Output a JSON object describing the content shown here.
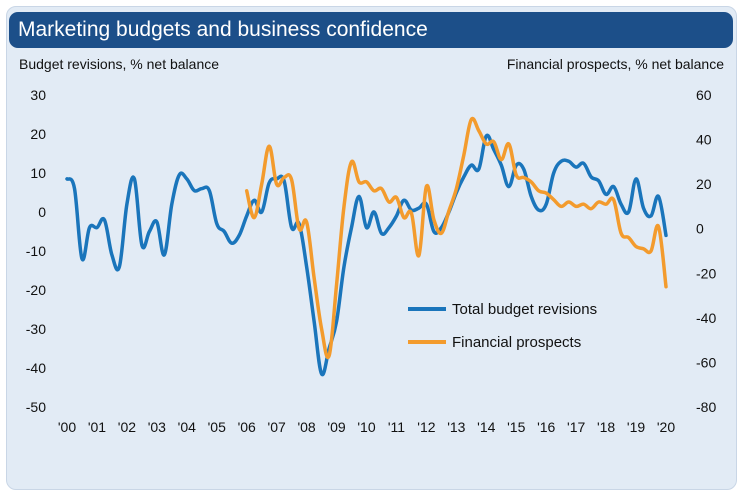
{
  "chart_data": {
    "type": "line",
    "title": "Marketing budgets and business confidence",
    "ylabel_left": "Budget revisions, % net balance",
    "ylabel_right": "Financial prospects, % net balance",
    "x_ticks": [
      "'00",
      "'01",
      "'02",
      "'03",
      "'04",
      "'05",
      "'06",
      "'07",
      "'08",
      "'09",
      "'10",
      "'11",
      "'12",
      "'13",
      "'14",
      "'15",
      "'16",
      "'17",
      "'18",
      "'19",
      "'20"
    ],
    "y_left_ticks": [
      30,
      20,
      10,
      0,
      -10,
      -20,
      -30,
      -40,
      -50
    ],
    "y_right_ticks": [
      60,
      40,
      20,
      0,
      -20,
      -40,
      -60,
      -80
    ],
    "ylim_left": [
      -50,
      30
    ],
    "ylim_right": [
      -80,
      60
    ],
    "grid": false,
    "legend_position": "lower-right",
    "colors": {
      "budget": "#1a75bb",
      "prospects": "#f39b2d",
      "title_bg": "#1c4f89",
      "panel_bg": "#e2ebf5"
    },
    "series": [
      {
        "name": "Total budget revisions",
        "axis": "left",
        "x": [
          2000.0,
          2000.25,
          2000.5,
          2000.75,
          2001.0,
          2001.25,
          2001.5,
          2001.75,
          2002.0,
          2002.25,
          2002.5,
          2002.75,
          2003.0,
          2003.25,
          2003.5,
          2003.75,
          2004.0,
          2004.25,
          2004.5,
          2004.75,
          2005.0,
          2005.25,
          2005.5,
          2005.75,
          2006.0,
          2006.25,
          2006.5,
          2006.75,
          2007.0,
          2007.25,
          2007.5,
          2007.75,
          2008.0,
          2008.25,
          2008.5,
          2008.75,
          2009.0,
          2009.25,
          2009.5,
          2009.75,
          2010.0,
          2010.25,
          2010.5,
          2010.75,
          2011.0,
          2011.25,
          2011.5,
          2011.75,
          2012.0,
          2012.25,
          2012.5,
          2012.75,
          2013.0,
          2013.25,
          2013.5,
          2013.75,
          2014.0,
          2014.25,
          2014.5,
          2014.75,
          2015.0,
          2015.25,
          2015.5,
          2015.75,
          2016.0,
          2016.25,
          2016.5,
          2016.75,
          2017.0,
          2017.25,
          2017.5,
          2017.75,
          2018.0,
          2018.25,
          2018.5,
          2018.75,
          2019.0,
          2019.25,
          2019.5,
          2019.75,
          2020.0
        ],
        "values": [
          8.5,
          6.0,
          -12.0,
          -4.0,
          -4.0,
          -2.0,
          -11.0,
          -14.0,
          2.0,
          8.5,
          -8.5,
          -5.0,
          -2.5,
          -11.0,
          2.0,
          9.5,
          8.5,
          5.5,
          6.0,
          5.5,
          -3.0,
          -5.0,
          -8.0,
          -6.0,
          -1.0,
          3.0,
          0.0,
          7.5,
          8.5,
          8.0,
          -4.0,
          -3.0,
          -14.0,
          -28.0,
          -41.5,
          -35.0,
          -28.0,
          -14.0,
          -4.0,
          4.0,
          -4.0,
          0.0,
          -5.5,
          -4.0,
          -1.0,
          3.0,
          0.5,
          1.0,
          2.0,
          -5.0,
          -4.0,
          0.0,
          5.0,
          9.0,
          12.0,
          11.0,
          19.5,
          16.0,
          12.0,
          6.5,
          12.0,
          11.0,
          4.0,
          0.5,
          2.0,
          10.0,
          13.0,
          13.0,
          11.5,
          12.5,
          9.0,
          8.0,
          4.5,
          6.5,
          2.0,
          0.0,
          8.5,
          1.0,
          -1.0,
          4.0,
          -6.0
        ]
      },
      {
        "name": "Financial prospects",
        "axis": "right",
        "x": [
          2006.0,
          2006.25,
          2006.5,
          2006.75,
          2007.0,
          2007.25,
          2007.5,
          2007.75,
          2008.0,
          2008.25,
          2008.5,
          2008.75,
          2009.0,
          2009.25,
          2009.5,
          2009.75,
          2010.0,
          2010.25,
          2010.5,
          2010.75,
          2011.0,
          2011.25,
          2011.5,
          2011.75,
          2012.0,
          2012.25,
          2012.5,
          2012.75,
          2013.0,
          2013.25,
          2013.5,
          2013.75,
          2014.0,
          2014.25,
          2014.5,
          2014.75,
          2015.0,
          2015.25,
          2015.5,
          2015.75,
          2016.0,
          2016.25,
          2016.5,
          2016.75,
          2017.0,
          2017.25,
          2017.5,
          2017.75,
          2018.0,
          2018.25,
          2018.5,
          2018.75,
          2019.0,
          2019.25,
          2019.5,
          2019.75,
          2020.0
        ],
        "values": [
          17.0,
          5.0,
          20.0,
          37.0,
          20.0,
          23.0,
          22.0,
          0.0,
          3.0,
          -22.0,
          -45.0,
          -57.0,
          -25.0,
          10.0,
          30.0,
          21.0,
          21.0,
          17.0,
          18.0,
          12.0,
          14.0,
          5.0,
          7.0,
          -12.0,
          19.0,
          4.0,
          -2.0,
          8.0,
          18.0,
          33.0,
          49.0,
          44.0,
          38.0,
          39.0,
          31.0,
          38.0,
          24.0,
          23.0,
          21.0,
          17.0,
          16.0,
          13.0,
          10.0,
          12.0,
          10.0,
          11.0,
          9.0,
          12.0,
          11.0,
          13.0,
          -2.0,
          -4.0,
          -8.0,
          -9.0,
          -10.0,
          1.0,
          -26.0
        ]
      }
    ]
  }
}
